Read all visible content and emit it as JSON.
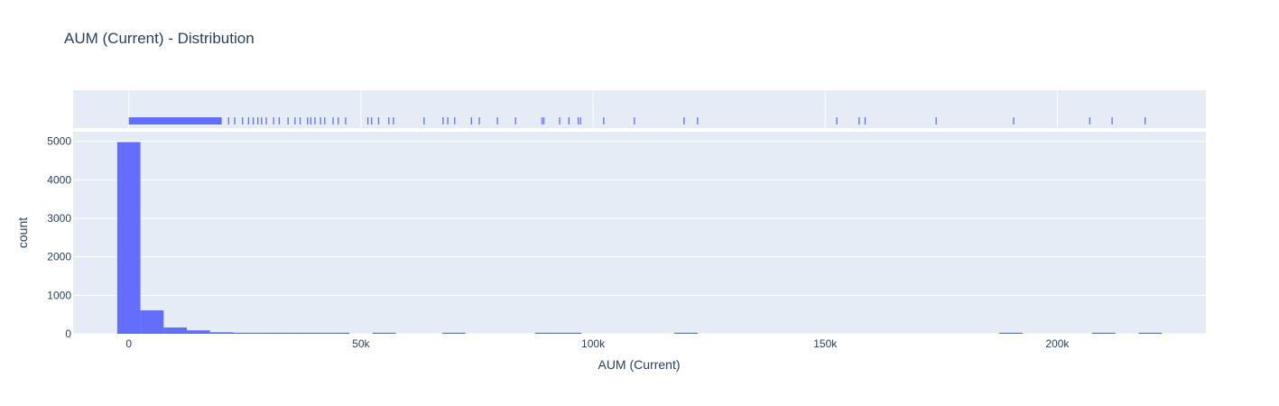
{
  "chart_data": {
    "type": "bar",
    "title": "AUM (Current) - Distribution",
    "xlabel": "AUM (Current)",
    "ylabel": "count",
    "xlim": [
      -12000,
      232000
    ],
    "ylim": [
      0,
      5250
    ],
    "x_ticks": [
      0,
      50000,
      100000,
      150000,
      200000
    ],
    "x_tick_labels": [
      "0",
      "50k",
      "100k",
      "150k",
      "200k"
    ],
    "y_ticks": [
      0,
      1000,
      2000,
      3000,
      4000,
      5000
    ],
    "y_tick_labels": [
      "0",
      "1000",
      "2000",
      "3000",
      "4000",
      "5000"
    ],
    "bin_width": 5000,
    "bins": [
      {
        "start": -2500,
        "count": 4980
      },
      {
        "start": 2500,
        "count": 610
      },
      {
        "start": 7500,
        "count": 165
      },
      {
        "start": 12500,
        "count": 90
      },
      {
        "start": 17500,
        "count": 40
      },
      {
        "start": 22500,
        "count": 20
      },
      {
        "start": 27500,
        "count": 14
      },
      {
        "start": 32500,
        "count": 10
      },
      {
        "start": 37500,
        "count": 8
      },
      {
        "start": 42500,
        "count": 6
      },
      {
        "start": 52500,
        "count": 2
      },
      {
        "start": 67500,
        "count": 3
      },
      {
        "start": 87500,
        "count": 4
      },
      {
        "start": 92500,
        "count": 2
      },
      {
        "start": 117500,
        "count": 2
      },
      {
        "start": 187500,
        "count": 1
      },
      {
        "start": 207500,
        "count": 2
      },
      {
        "start": 217500,
        "count": 2
      }
    ],
    "rug": {
      "dense_range": [
        0,
        20000
      ],
      "points": [
        21500,
        22800,
        24500,
        25800,
        26800,
        27800,
        28600,
        29600,
        31200,
        32400,
        34300,
        35800,
        36900,
        38500,
        39200,
        40100,
        41300,
        42200,
        44000,
        45100,
        46700,
        51500,
        52300,
        53800,
        56000,
        57000,
        63600,
        67700,
        68700,
        70200,
        73800,
        75500,
        79400,
        83300,
        89000,
        89400,
        92800,
        94800,
        96800,
        97300,
        102300,
        108900,
        119600,
        122500,
        152500,
        157300,
        158600,
        173900,
        190600,
        207000,
        211800,
        218900
      ]
    },
    "colors": {
      "bar": "#636efa",
      "plot_bg": "#e5ecf6",
      "grid": "#ffffff"
    },
    "grid": true
  }
}
